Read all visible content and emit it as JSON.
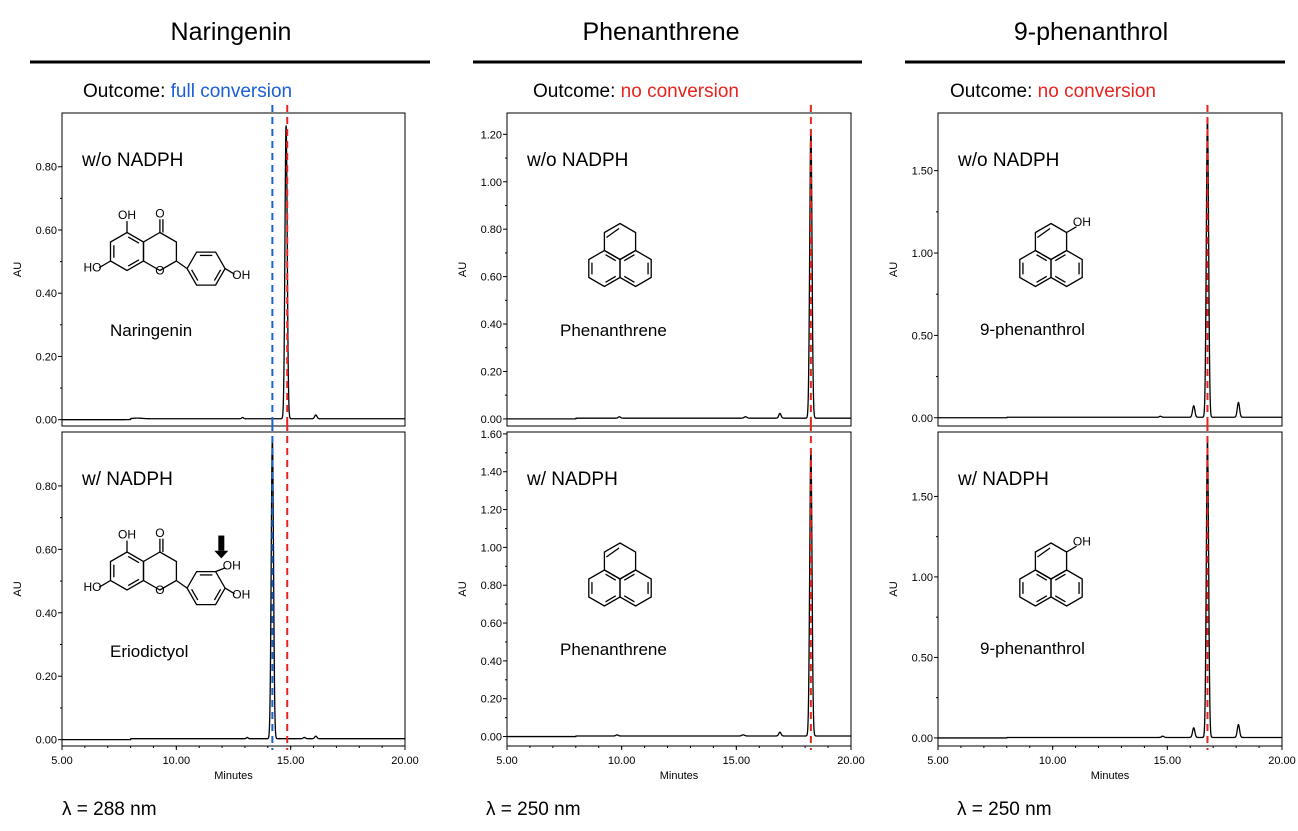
{
  "columns": [
    {
      "title": "Naringenin",
      "outcome_label": "Outcome: ",
      "outcome_text": "full conversion",
      "outcome_color": "#1a5fd6",
      "wavelength": "λ = 288 nm"
    },
    {
      "title": "Phenanthrene",
      "outcome_label": "Outcome: ",
      "outcome_text": "no conversion",
      "outcome_color": "#e8231f",
      "wavelength": "λ = 250 nm"
    },
    {
      "title": "9-phenanthrol",
      "outcome_label": "Outcome: ",
      "outcome_text": "no conversion",
      "outcome_color": "#e8231f",
      "wavelength": "λ = 250 nm"
    }
  ],
  "colors": {
    "trace": "#000000",
    "substrate_line": "#e8231f",
    "product_line": "#1a5fd6"
  },
  "chart_data": [
    {
      "type": "line",
      "column": 0,
      "panel": "top",
      "label": "w/o NADPH",
      "compound_label": "Naringenin",
      "structure": "naringenin",
      "struct_labels": [
        "OH",
        "O",
        "HO",
        "O",
        "OH"
      ],
      "ylabel": "AU",
      "xlabel": "",
      "xlim": [
        5,
        20
      ],
      "ylim": [
        -0.02,
        0.97
      ],
      "yticks": [
        0,
        0.2,
        0.4,
        0.6,
        0.8
      ],
      "ytick_labels": [
        "0.00",
        "0.20",
        "0.40",
        "0.60",
        "0.80"
      ],
      "xticks": [],
      "xtick_labels": [],
      "peaks": [
        {
          "x": 14.8,
          "y": 0.93,
          "w": 0.05
        },
        {
          "x": 16.1,
          "y": 0.012,
          "w": 0.05
        },
        {
          "x": 12.9,
          "y": 0.004,
          "w": 0.04
        },
        {
          "x": 8.3,
          "y": 0.002,
          "w": 0.2
        }
      ],
      "ref_lines": [
        {
          "x": 14.85,
          "role": "substrate"
        },
        {
          "x": 14.2,
          "role": "product"
        }
      ]
    },
    {
      "type": "line",
      "column": 0,
      "panel": "bottom",
      "label": "w/ NADPH",
      "compound_label": "Eriodictyol",
      "structure": "eriodictyol",
      "struct_labels": [
        "OH",
        "O",
        "HO",
        "O",
        "OH",
        "OH"
      ],
      "ylabel": "AU",
      "xlabel": "Minutes",
      "xlim": [
        5,
        20
      ],
      "ylim": [
        -0.02,
        0.97
      ],
      "yticks": [
        0,
        0.2,
        0.4,
        0.6,
        0.8
      ],
      "ytick_labels": [
        "0.00",
        "0.20",
        "0.40",
        "0.60",
        "0.80"
      ],
      "xticks": [
        5,
        10,
        15,
        20
      ],
      "xtick_labels": [
        "5.00",
        "10.00",
        "15.00",
        "20.00"
      ],
      "peaks": [
        {
          "x": 14.2,
          "y": 0.95,
          "w": 0.05
        },
        {
          "x": 16.1,
          "y": 0.008,
          "w": 0.05
        },
        {
          "x": 13.1,
          "y": 0.004,
          "w": 0.04
        },
        {
          "x": 15.6,
          "y": 0.004,
          "w": 0.05
        }
      ],
      "ref_lines": [
        {
          "x": 14.85,
          "role": "substrate"
        },
        {
          "x": 14.2,
          "role": "product"
        }
      ]
    },
    {
      "type": "line",
      "column": 1,
      "panel": "top",
      "label": "w/o NADPH",
      "compound_label": "Phenanthrene",
      "structure": "phenanthrene",
      "struct_labels": [],
      "ylabel": "AU",
      "xlabel": "",
      "xlim": [
        5,
        20
      ],
      "ylim": [
        -0.03,
        1.29
      ],
      "yticks": [
        0,
        0.2,
        0.4,
        0.6,
        0.8,
        1.0,
        1.2
      ],
      "ytick_labels": [
        "0.00",
        "0.20",
        "0.40",
        "0.60",
        "0.80",
        "1.00",
        "1.20"
      ],
      "xticks": [],
      "xtick_labels": [],
      "peaks": [
        {
          "x": 18.25,
          "y": 1.22,
          "w": 0.05
        },
        {
          "x": 16.9,
          "y": 0.02,
          "w": 0.05
        },
        {
          "x": 15.4,
          "y": 0.006,
          "w": 0.06
        },
        {
          "x": 9.9,
          "y": 0.006,
          "w": 0.05
        }
      ],
      "ref_lines": [
        {
          "x": 18.25,
          "role": "substrate"
        }
      ]
    },
    {
      "type": "line",
      "column": 1,
      "panel": "bottom",
      "label": "w/ NADPH",
      "compound_label": "Phenanthrene",
      "structure": "phenanthrene",
      "struct_labels": [],
      "ylabel": "AU",
      "xlabel": "Minutes",
      "xlim": [
        5,
        20
      ],
      "ylim": [
        -0.05,
        1.61
      ],
      "yticks": [
        0,
        0.2,
        0.4,
        0.6,
        0.8,
        1.0,
        1.2,
        1.4,
        1.6
      ],
      "ytick_labels": [
        "0.00",
        "0.20",
        "0.40",
        "0.60",
        "0.80",
        "1.00",
        "1.20",
        "1.40",
        "1.60"
      ],
      "xticks": [
        5,
        10,
        15,
        20
      ],
      "xtick_labels": [
        "5.00",
        "10.00",
        "15.00",
        "20.00"
      ],
      "peaks": [
        {
          "x": 18.25,
          "y": 1.52,
          "w": 0.05
        },
        {
          "x": 16.9,
          "y": 0.02,
          "w": 0.05
        },
        {
          "x": 15.3,
          "y": 0.006,
          "w": 0.06
        },
        {
          "x": 9.8,
          "y": 0.006,
          "w": 0.05
        }
      ],
      "ref_lines": [
        {
          "x": 18.25,
          "role": "substrate"
        }
      ]
    },
    {
      "type": "line",
      "column": 2,
      "panel": "top",
      "label": "w/o NADPH",
      "compound_label": "9-phenanthrol",
      "structure": "phenanthrol",
      "struct_labels": [
        "OH"
      ],
      "ylabel": "AU",
      "xlabel": "",
      "xlim": [
        5,
        20
      ],
      "ylim": [
        -0.05,
        1.85
      ],
      "yticks": [
        0,
        0.5,
        1.0,
        1.5
      ],
      "ytick_labels": [
        "0.00",
        "0.50",
        "1.00",
        "1.50"
      ],
      "xticks": [],
      "xtick_labels": [],
      "peaks": [
        {
          "x": 16.75,
          "y": 1.82,
          "w": 0.05
        },
        {
          "x": 16.15,
          "y": 0.07,
          "w": 0.05
        },
        {
          "x": 18.1,
          "y": 0.09,
          "w": 0.05
        },
        {
          "x": 14.7,
          "y": 0.006,
          "w": 0.05
        }
      ],
      "ref_lines": [
        {
          "x": 16.75,
          "role": "substrate"
        }
      ]
    },
    {
      "type": "line",
      "column": 2,
      "panel": "bottom",
      "label": "w/ NADPH",
      "compound_label": "9-phenanthrol",
      "structure": "phenanthrol",
      "struct_labels": [
        "OH"
      ],
      "ylabel": "AU",
      "xlabel": "Minutes",
      "xlim": [
        5,
        20
      ],
      "ylim": [
        -0.05,
        1.9
      ],
      "yticks": [
        0,
        0.5,
        1.0,
        1.5
      ],
      "ytick_labels": [
        "0.00",
        "0.50",
        "1.00",
        "1.50"
      ],
      "xticks": [
        5,
        10,
        15,
        20
      ],
      "xtick_labels": [
        "5.00",
        "10.00",
        "15.00",
        "20.00"
      ],
      "peaks": [
        {
          "x": 16.75,
          "y": 1.85,
          "w": 0.05
        },
        {
          "x": 16.15,
          "y": 0.06,
          "w": 0.05
        },
        {
          "x": 18.1,
          "y": 0.08,
          "w": 0.05
        },
        {
          "x": 14.8,
          "y": 0.008,
          "w": 0.05
        }
      ],
      "ref_lines": [
        {
          "x": 16.75,
          "role": "substrate"
        }
      ]
    }
  ]
}
